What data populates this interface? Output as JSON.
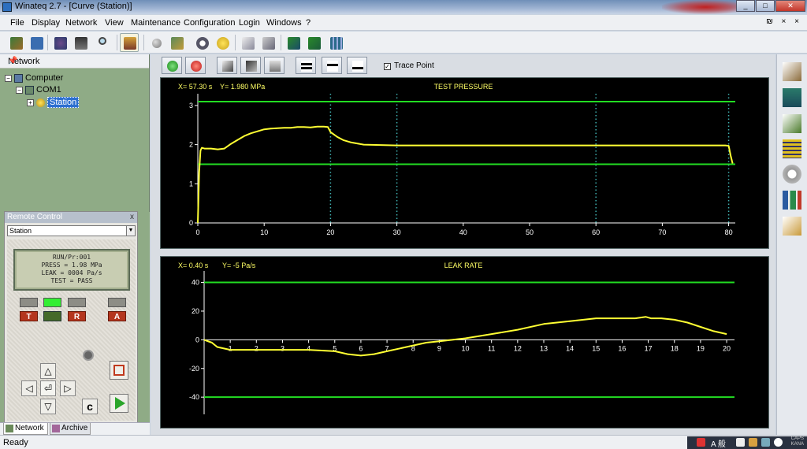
{
  "window": {
    "title": "Winateq 2.7  - [Curve  (Station)]",
    "minimize": "_",
    "maximize": "□",
    "close": "✕"
  },
  "menu": {
    "items": [
      "File",
      "Display",
      "Network",
      "View",
      "Maintenance",
      "Configuration",
      "Login",
      "Windows",
      "?"
    ],
    "mdi_controls": "₪ × ×"
  },
  "network_panel": {
    "title": "Network",
    "pin": "📌",
    "tree": {
      "computer": "Computer",
      "port": "COM1",
      "station": "Station"
    }
  },
  "remote_control": {
    "title": "Remote Control",
    "close": "x",
    "selected_station": "Station",
    "display_lines": [
      "RUN/Pr:001",
      "PRESS =   1.98 MPa",
      "LEAK = 0004 Pa/s",
      "TEST = PASS"
    ],
    "keys": {
      "t": "T",
      "r": "R",
      "a": "A",
      "c": "c"
    },
    "arrows": {
      "up": "△",
      "down": "▽",
      "left": "◁",
      "right": "▷",
      "enter": "⏎"
    }
  },
  "panel_tabs": {
    "network": "Network",
    "archive": "Archive"
  },
  "chart_toolbar": {
    "trace_point_label": "Trace Point",
    "trace_point_checked": true
  },
  "status": {
    "text": "Ready"
  },
  "tray": {
    "ime": "A 般",
    "clock": "CAPS\nKANA"
  },
  "colors": {
    "trace": "#ffff33",
    "limit": "#22dd22",
    "cursor": "#3fb0b0",
    "axis": "#ffffff",
    "background": "#000000"
  },
  "chart_data": [
    {
      "type": "line",
      "title": "TEST PRESSURE",
      "cursor_readout": {
        "x": "X=  57.30 s",
        "y": "Y=  1.980 MPa"
      },
      "xlim": [
        0,
        81
      ],
      "ylim": [
        0,
        3.3
      ],
      "x_ticks": [
        0,
        10,
        20,
        30,
        40,
        50,
        60,
        70,
        80
      ],
      "y_ticks": [
        0,
        1,
        2,
        3
      ],
      "limits": [
        3.1,
        1.5
      ],
      "cursors": [
        20,
        30,
        60,
        80
      ],
      "series": [
        {
          "x": [
            0,
            0.2,
            0.4,
            0.6,
            1,
            2,
            3,
            4,
            5,
            6,
            7,
            8,
            9,
            10,
            11,
            12,
            13,
            14,
            15,
            16,
            17,
            18,
            19,
            19.6,
            20,
            21,
            22,
            23,
            24,
            25,
            30,
            40,
            50,
            60,
            70,
            79.5,
            80.0,
            80.3,
            80.6
          ],
          "y": [
            0,
            1.3,
            1.85,
            1.92,
            1.9,
            1.9,
            1.88,
            1.9,
            2.02,
            2.12,
            2.22,
            2.29,
            2.34,
            2.39,
            2.41,
            2.42,
            2.43,
            2.43,
            2.45,
            2.45,
            2.44,
            2.46,
            2.46,
            2.45,
            2.32,
            2.2,
            2.11,
            2.06,
            2.03,
            2.0,
            1.98,
            1.98,
            1.98,
            1.98,
            1.98,
            1.98,
            1.97,
            1.72,
            1.52
          ]
        }
      ]
    },
    {
      "type": "line",
      "title": "LEAK RATE",
      "cursor_readout": {
        "x": "X=  0.40 s",
        "y": "Y=  -5 Pa/s"
      },
      "xlim": [
        0,
        20.3
      ],
      "ylim": [
        -52,
        48
      ],
      "x_ticks": [
        1,
        2,
        3,
        4,
        5,
        6,
        7,
        8,
        9,
        10,
        11,
        12,
        13,
        14,
        15,
        16,
        17,
        18,
        19,
        20
      ],
      "y_ticks": [
        40,
        20,
        0,
        -20,
        -40
      ],
      "limits": [
        40,
        -40
      ],
      "series": [
        {
          "x": [
            0,
            0.3,
            0.5,
            1,
            2,
            3,
            4,
            5,
            5.5,
            6,
            6.5,
            7,
            7.5,
            8,
            8.5,
            9,
            10,
            11,
            12,
            13,
            14,
            15,
            16,
            16.5,
            16.9,
            17.1,
            17.5,
            18,
            18.5,
            19,
            19.5,
            20
          ],
          "y": [
            0,
            -2,
            -5,
            -7,
            -7,
            -7,
            -7,
            -8,
            -10,
            -11,
            -10,
            -8,
            -6,
            -4,
            -2,
            -1,
            1,
            4,
            7,
            11,
            13,
            15,
            15,
            15,
            16,
            15,
            15,
            14,
            12,
            9,
            6,
            4
          ]
        }
      ]
    }
  ]
}
